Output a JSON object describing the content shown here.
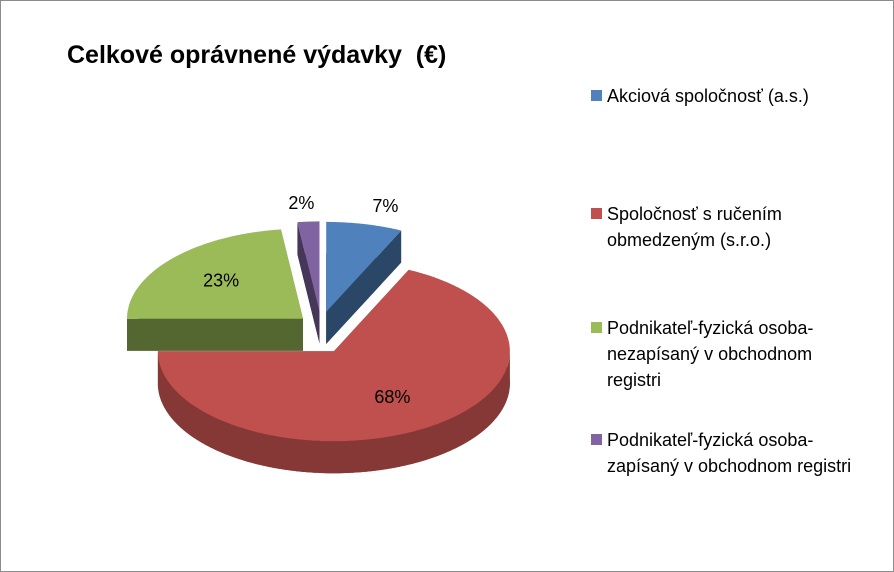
{
  "chart_data": {
    "type": "pie",
    "title": "Celkové oprávnené výdavky  (€)",
    "categories": [
      "Akciová spoločnosť (a.s.)",
      "Spoločnosť s ručením obmedzeným (s.r.o.)",
      "Podnikateľ-fyzická osoba-nezapísaný v obchodnom registri",
      "Podnikateľ-fyzická osoba-zapísaný v obchodnom registri"
    ],
    "values": [
      7,
      68,
      23,
      2
    ],
    "value_labels": [
      "7%",
      "68%",
      "23%",
      "2%"
    ],
    "colors": [
      "#4f81bd",
      "#c0504d",
      "#9bbb59",
      "#8064a2"
    ]
  }
}
